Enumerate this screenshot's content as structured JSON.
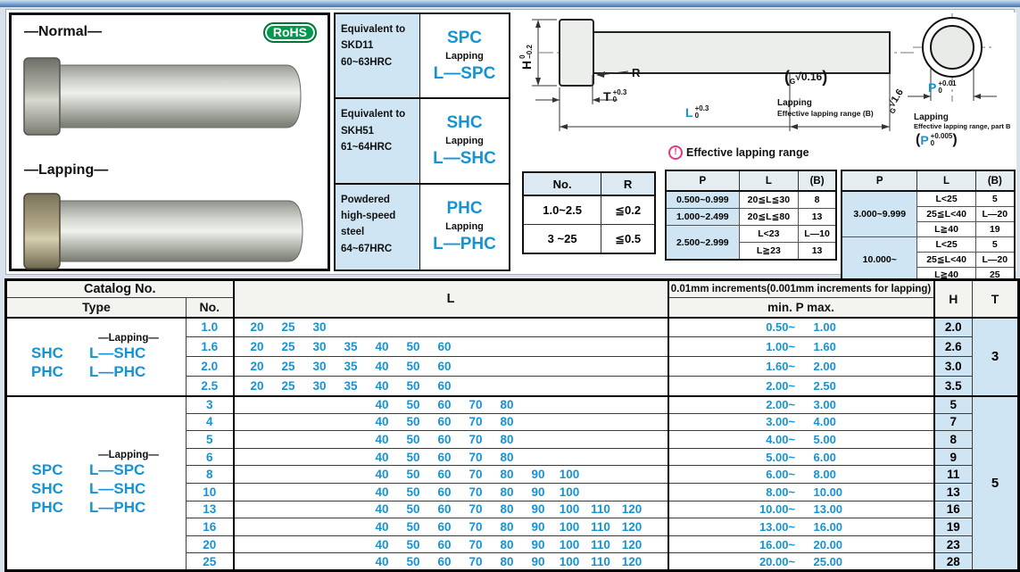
{
  "colors": {
    "blue": "#1693d3",
    "light_blue": "#cfe5f3",
    "green": "#009a4e",
    "pink": "#e8357f"
  },
  "photos": {
    "normal": "—Normal—",
    "lapping": "—Lapping—",
    "rohs": "RoHS"
  },
  "materials": {
    "rows": [
      {
        "lines": [
          "Equivalent to",
          "SKD11",
          "60~63HRC"
        ],
        "code": "SPC",
        "lapping": "Lapping",
        "lap_code": "L—SPC"
      },
      {
        "lines": [
          "Equivalent to",
          "SKH51",
          "61~64HRC"
        ],
        "code": "SHC",
        "lapping": "Lapping",
        "lap_code": "L—SHC"
      },
      {
        "lines": [
          "Powdered",
          "high-speed",
          "steel",
          "64~67HRC"
        ],
        "code": "PHC",
        "lapping": "Lapping",
        "lap_code": "L—PHC"
      }
    ]
  },
  "drawing": {
    "h_label": "H",
    "h_tol_top": "0",
    "h_tol_bottom": "−0.2",
    "t_label": "T",
    "t_tol_top": "+0.3",
    "t_tol_bottom": "0",
    "l_label": "L",
    "l_tol_top": "+0.3",
    "l_tol_bottom": "0",
    "r_label": "R",
    "rough_lap_letter": "G",
    "rough_lap_value": "√0.16",
    "rough_g_letter": "G",
    "rough_g_value": "√1.6",
    "lapping_note": "Lapping",
    "range_note": "Effective lapping range (B)",
    "p_label": "P",
    "p_tol_top": "+0.01",
    "p_tol_bottom": "0",
    "end_lapping_note": "Lapping",
    "end_range_note": "Effective lapping range, part B",
    "pp_label": "P",
    "pp_tol_top": "+0.005",
    "pp_tol_bottom": "0"
  },
  "no_r_table": {
    "headers": [
      "No.",
      "R"
    ],
    "rows": [
      [
        "1.0~2.5",
        "≦0.2"
      ],
      [
        "3 ~25",
        "≦0.5"
      ]
    ]
  },
  "lapping_range": {
    "title": "Effective lapping range",
    "note_icon": "!",
    "headers": [
      "P",
      "L",
      "(B)"
    ],
    "left_rows": [
      {
        "p": "0.500~0.999",
        "subs": [
          {
            "l": "20≦L≦30",
            "b": "8"
          }
        ]
      },
      {
        "p": "1.000~2.499",
        "subs": [
          {
            "l": "20≦L≦80",
            "b": "13"
          }
        ]
      },
      {
        "p": "2.500~2.999",
        "subs": [
          {
            "l": "L<23",
            "b": "L—10"
          },
          {
            "l": "L≧23",
            "b": "13"
          }
        ]
      }
    ],
    "right_rows": [
      {
        "p": "3.000~9.999",
        "subs": [
          {
            "l": "L<25",
            "b": "5"
          },
          {
            "l": "25≦L<40",
            "b": "L—20"
          },
          {
            "l": "L≧40",
            "b": "19"
          }
        ]
      },
      {
        "p": "10.000~",
        "subs": [
          {
            "l": "L<25",
            "b": "5"
          },
          {
            "l": "25≦L<40",
            "b": "L—20"
          },
          {
            "l": "L≧40",
            "b": "25"
          }
        ]
      }
    ]
  },
  "main_table": {
    "headers": {
      "catalog_no": "Catalog No.",
      "type": "Type",
      "no": "No.",
      "l": "L",
      "increments": "0.01mm increments(0.001mm increments for lapping)",
      "min_p_max": "min. P max.",
      "h": "H",
      "t": "T"
    },
    "range_separator": "~",
    "l_columns": [
      20,
      25,
      30,
      35,
      40,
      50,
      60,
      70,
      80,
      90,
      100,
      110,
      120
    ],
    "groups": [
      {
        "lapping_label": "—Lapping—",
        "types": [
          {
            "code": "SHC",
            "lap_code": "L—SHC"
          },
          {
            "code": "PHC",
            "lap_code": "L—PHC"
          }
        ],
        "t": "3",
        "rows": [
          {
            "no": "1.0",
            "l": [
              20,
              25,
              30
            ],
            "p_min": "0.50",
            "p_max": "1.00",
            "h": "2.0"
          },
          {
            "no": "1.6",
            "l": [
              20,
              25,
              30,
              35,
              40,
              50,
              60
            ],
            "p_min": "1.00",
            "p_max": "1.60",
            "h": "2.6"
          },
          {
            "no": "2.0",
            "l": [
              20,
              25,
              30,
              35,
              40,
              50,
              60
            ],
            "p_min": "1.60",
            "p_max": "2.00",
            "h": "3.0"
          },
          {
            "no": "2.5",
            "l": [
              20,
              25,
              30,
              35,
              40,
              50,
              60
            ],
            "p_min": "2.00",
            "p_max": "2.50",
            "h": "3.5"
          }
        ]
      },
      {
        "lapping_label": "—Lapping—",
        "types": [
          {
            "code": "SPC",
            "lap_code": "L—SPC"
          },
          {
            "code": "SHC",
            "lap_code": "L—SHC"
          },
          {
            "code": "PHC",
            "lap_code": "L—PHC"
          }
        ],
        "t": "5",
        "rows": [
          {
            "no": "3",
            "l": [
              40,
              50,
              60,
              70,
              80
            ],
            "p_min": "2.00",
            "p_max": "3.00",
            "h": "5"
          },
          {
            "no": "4",
            "l": [
              40,
              50,
              60,
              70,
              80
            ],
            "p_min": "3.00",
            "p_max": "4.00",
            "h": "7"
          },
          {
            "no": "5",
            "l": [
              40,
              50,
              60,
              70,
              80
            ],
            "p_min": "4.00",
            "p_max": "5.00",
            "h": "8"
          },
          {
            "no": "6",
            "l": [
              40,
              50,
              60,
              70,
              80
            ],
            "p_min": "5.00",
            "p_max": "6.00",
            "h": "9"
          },
          {
            "no": "8",
            "l": [
              40,
              50,
              60,
              70,
              80,
              90,
              100
            ],
            "p_min": "6.00",
            "p_max": "8.00",
            "h": "11"
          },
          {
            "no": "10",
            "l": [
              40,
              50,
              60,
              70,
              80,
              90,
              100
            ],
            "p_min": "8.00",
            "p_max": "10.00",
            "h": "13"
          },
          {
            "no": "13",
            "l": [
              40,
              50,
              60,
              70,
              80,
              90,
              100,
              110,
              120
            ],
            "p_min": "10.00",
            "p_max": "13.00",
            "h": "16"
          },
          {
            "no": "16",
            "l": [
              40,
              50,
              60,
              70,
              80,
              90,
              100,
              110,
              120
            ],
            "p_min": "13.00",
            "p_max": "16.00",
            "h": "19"
          },
          {
            "no": "20",
            "l": [
              40,
              50,
              60,
              70,
              80,
              90,
              100,
              110,
              120
            ],
            "p_min": "16.00",
            "p_max": "20.00",
            "h": "23"
          },
          {
            "no": "25",
            "l": [
              40,
              50,
              60,
              70,
              80,
              90,
              100,
              110,
              120
            ],
            "p_min": "20.00",
            "p_max": "25.00",
            "h": "28"
          }
        ]
      }
    ]
  }
}
